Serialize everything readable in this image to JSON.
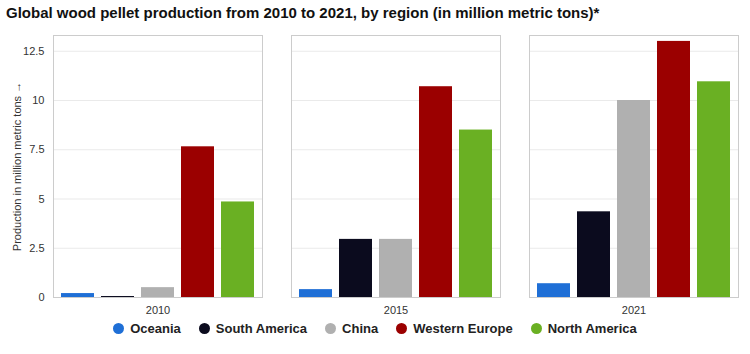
{
  "chart_data": {
    "type": "bar",
    "title": "Global wood pellet production from 2010 to 2021, by region (in million metric tons)*",
    "y_label": "Production in million metric tons",
    "categories": [
      "2010",
      "2015",
      "2021"
    ],
    "series": [
      {
        "name": "Oceania",
        "color": "#1f6fd6",
        "values": [
          0.2,
          0.4,
          0.7
        ]
      },
      {
        "name": "South America",
        "color": "#0b0b1e",
        "values": [
          0.05,
          2.95,
          4.35
        ]
      },
      {
        "name": "China",
        "color": "#b0b0b0",
        "values": [
          0.5,
          2.95,
          10.0
        ]
      },
      {
        "name": "Western Europe",
        "color": "#9b0000",
        "values": [
          7.65,
          10.7,
          13.0
        ]
      },
      {
        "name": "North America",
        "color": "#6ab023",
        "values": [
          4.85,
          8.5,
          10.95
        ]
      }
    ],
    "ylim": [
      0,
      13.3
    ],
    "yticks": [
      0,
      2.5,
      5,
      7.5,
      10,
      12.5
    ],
    "grid": true,
    "legend": "bottom"
  }
}
